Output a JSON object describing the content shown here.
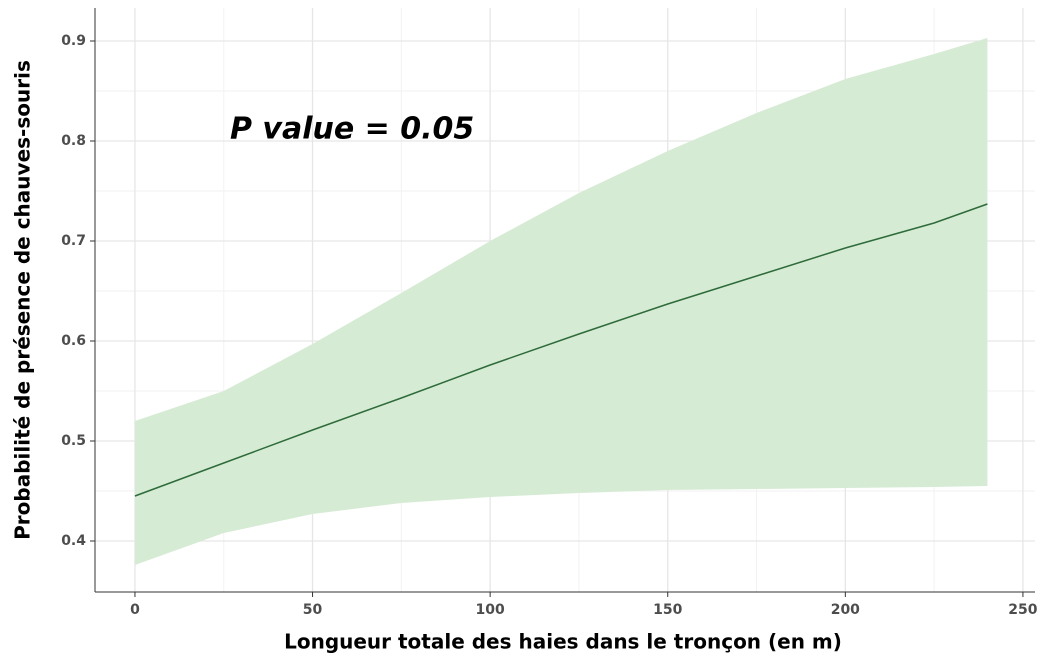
{
  "chart_data": {
    "type": "line",
    "x_label": "Longueur totale des haies dans le tronçon (en m)",
    "y_label": "Probabilité de présence de chauves-souris",
    "annotation": "P value = 0.05",
    "x": [
      0,
      25,
      50,
      75,
      100,
      125,
      150,
      175,
      200,
      225,
      240
    ],
    "values": [
      0.445,
      0.478,
      0.511,
      0.543,
      0.576,
      0.607,
      0.637,
      0.665,
      0.693,
      0.718,
      0.737
    ],
    "upper": [
      0.52,
      0.55,
      0.597,
      0.648,
      0.7,
      0.748,
      0.79,
      0.828,
      0.862,
      0.887,
      0.903
    ],
    "lower": [
      0.376,
      0.408,
      0.427,
      0.438,
      0.444,
      0.448,
      0.451,
      0.452,
      0.453,
      0.454,
      0.455
    ],
    "color": "#2e6b3a",
    "band_color": "#d6ebd4",
    "xlim": [
      -11.25,
      253.4
    ],
    "ylim": [
      0.349,
      0.933
    ],
    "xticks": [
      0,
      50,
      100,
      150,
      200,
      250
    ],
    "yticks": [
      0.4,
      0.5,
      0.6,
      0.7,
      0.8,
      0.9
    ],
    "grid": true,
    "minor_grid": true
  }
}
